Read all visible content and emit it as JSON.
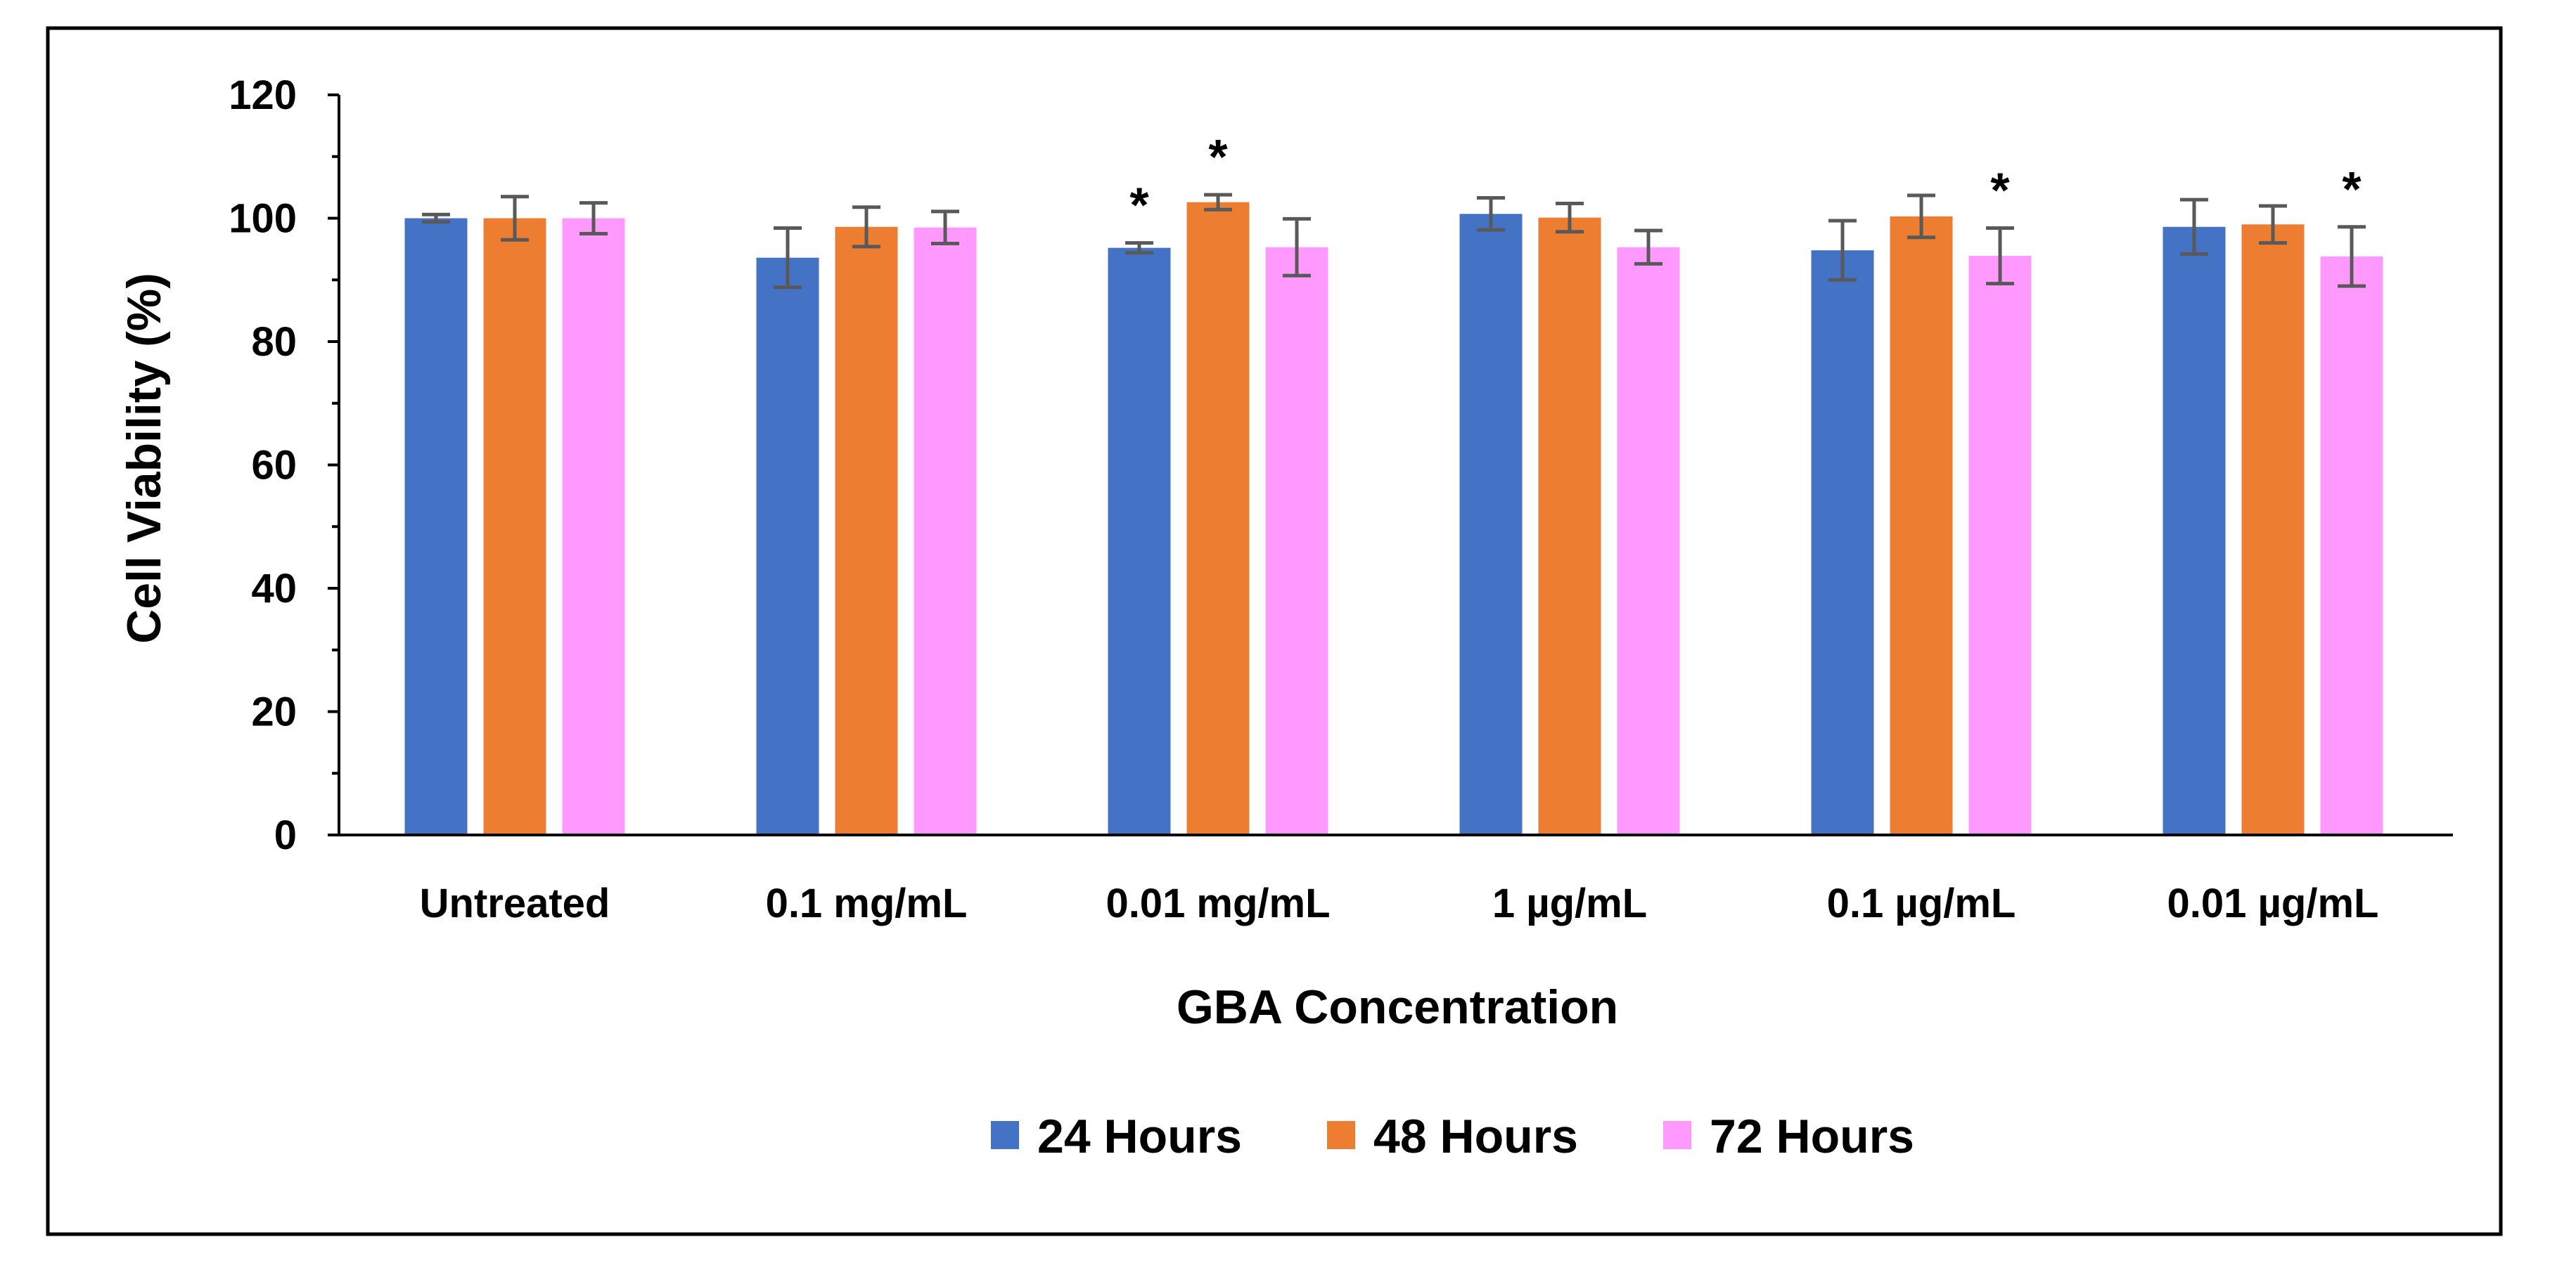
{
  "chart_data": {
    "type": "bar",
    "title": "",
    "xlabel": "GBA Concentration",
    "ylabel": "Cell Viability (%)",
    "ylim": [
      0,
      120
    ],
    "yticks": [
      0,
      20,
      40,
      60,
      80,
      100,
      120
    ],
    "grid": false,
    "legend_position": "bottom",
    "categories": [
      "Untreated",
      "0.1 mg/mL",
      "0.01 mg/mL",
      "1 µg/mL",
      "0.1 µg/mL",
      "0.01 µg/mL"
    ],
    "series": [
      {
        "name": "24 Hours",
        "color": "#4472C4",
        "values": [
          100.0,
          93.6,
          95.2,
          100.7,
          94.8,
          98.6
        ],
        "errors": [
          0.6,
          4.8,
          0.8,
          2.6,
          4.8,
          4.4
        ],
        "significant": [
          false,
          false,
          true,
          false,
          false,
          false
        ]
      },
      {
        "name": "48 Hours",
        "color": "#ED7D31",
        "values": [
          100.0,
          98.6,
          102.6,
          100.1,
          100.3,
          99.0
        ],
        "errors": [
          3.5,
          3.2,
          1.2,
          2.3,
          3.4,
          3.0
        ],
        "significant": [
          false,
          false,
          true,
          false,
          false,
          false
        ]
      },
      {
        "name": "72 Hours",
        "color": "#FF99FF",
        "values": [
          100.0,
          98.5,
          95.3,
          95.3,
          93.9,
          93.8
        ],
        "errors": [
          2.5,
          2.6,
          4.6,
          2.7,
          4.5,
          4.8
        ],
        "significant": [
          false,
          false,
          false,
          false,
          true,
          true
        ]
      }
    ],
    "significance_symbol": "*",
    "error_bar_color": "#595959"
  }
}
